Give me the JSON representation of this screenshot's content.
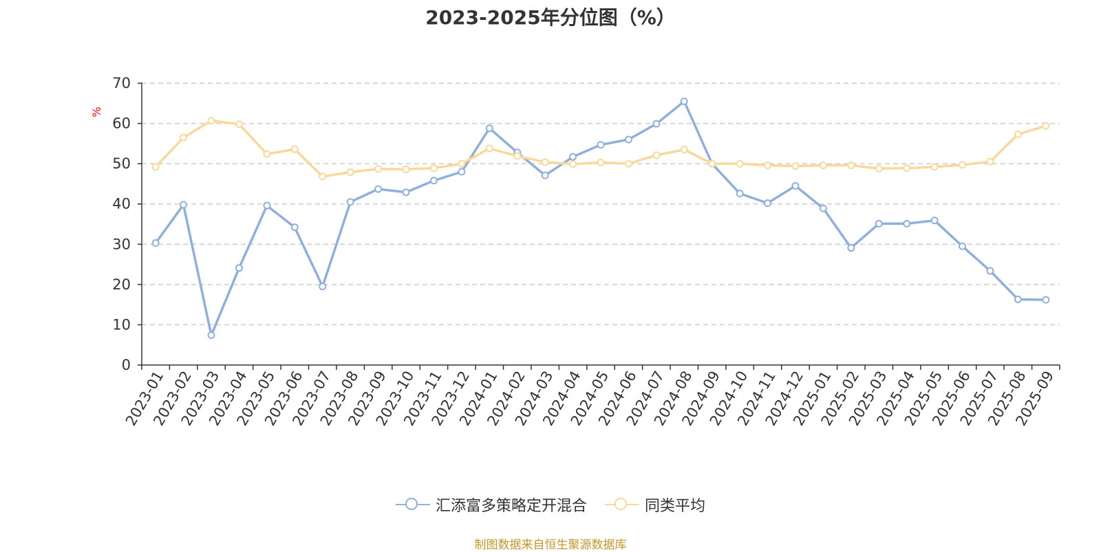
{
  "chart_data": {
    "type": "line",
    "title": "2023-2025年分位图（%）",
    "ylabel": "%",
    "ylim": [
      0,
      70
    ],
    "yticks": [
      0,
      10,
      20,
      30,
      40,
      50,
      60,
      70
    ],
    "grid": true,
    "legend_position": "bottom",
    "categories": [
      "2023-01",
      "2023-02",
      "2023-03",
      "2023-04",
      "2023-05",
      "2023-06",
      "2023-07",
      "2023-08",
      "2023-09",
      "2023-10",
      "2023-11",
      "2023-12",
      "2024-01",
      "2024-02",
      "2024-03",
      "2024-04",
      "2024-05",
      "2024-06",
      "2024-07",
      "2024-08",
      "2024-09",
      "2024-10",
      "2024-11",
      "2024-12",
      "2025-01",
      "2025-02",
      "2025-03",
      "2025-04",
      "2025-05",
      "2025-06",
      "2025-07",
      "2025-08",
      "2025-09"
    ],
    "series": [
      {
        "name": "汇添富多策略定开混合",
        "color": "#8fb0dc",
        "values": [
          30.3,
          39.8,
          7.4,
          24.1,
          39.6,
          34.2,
          19.5,
          40.5,
          43.7,
          42.9,
          45.8,
          48.0,
          58.8,
          52.8,
          47.1,
          51.7,
          54.7,
          56.0,
          59.9,
          65.5,
          50.0,
          42.6,
          40.2,
          44.5,
          38.9,
          29.1,
          35.1,
          35.1,
          35.9,
          29.5,
          23.4,
          16.3,
          16.2
        ]
      },
      {
        "name": "同类平均",
        "color": "#fbd89a",
        "values": [
          49.2,
          56.5,
          60.7,
          59.8,
          52.4,
          53.6,
          46.8,
          47.9,
          48.7,
          48.6,
          48.9,
          50.0,
          53.8,
          51.9,
          50.4,
          49.9,
          50.3,
          50.0,
          52.1,
          53.5,
          50.0,
          50.0,
          49.6,
          49.4,
          49.6,
          49.6,
          48.8,
          48.9,
          49.2,
          49.7,
          50.5,
          57.3,
          59.4
        ]
      }
    ]
  },
  "source_text": "制图数据来自恒生聚源数据库",
  "colors": {
    "axis": "#333333",
    "grid": "#cccccc",
    "ylabel": "#ff0000",
    "source": "#c8952a"
  }
}
